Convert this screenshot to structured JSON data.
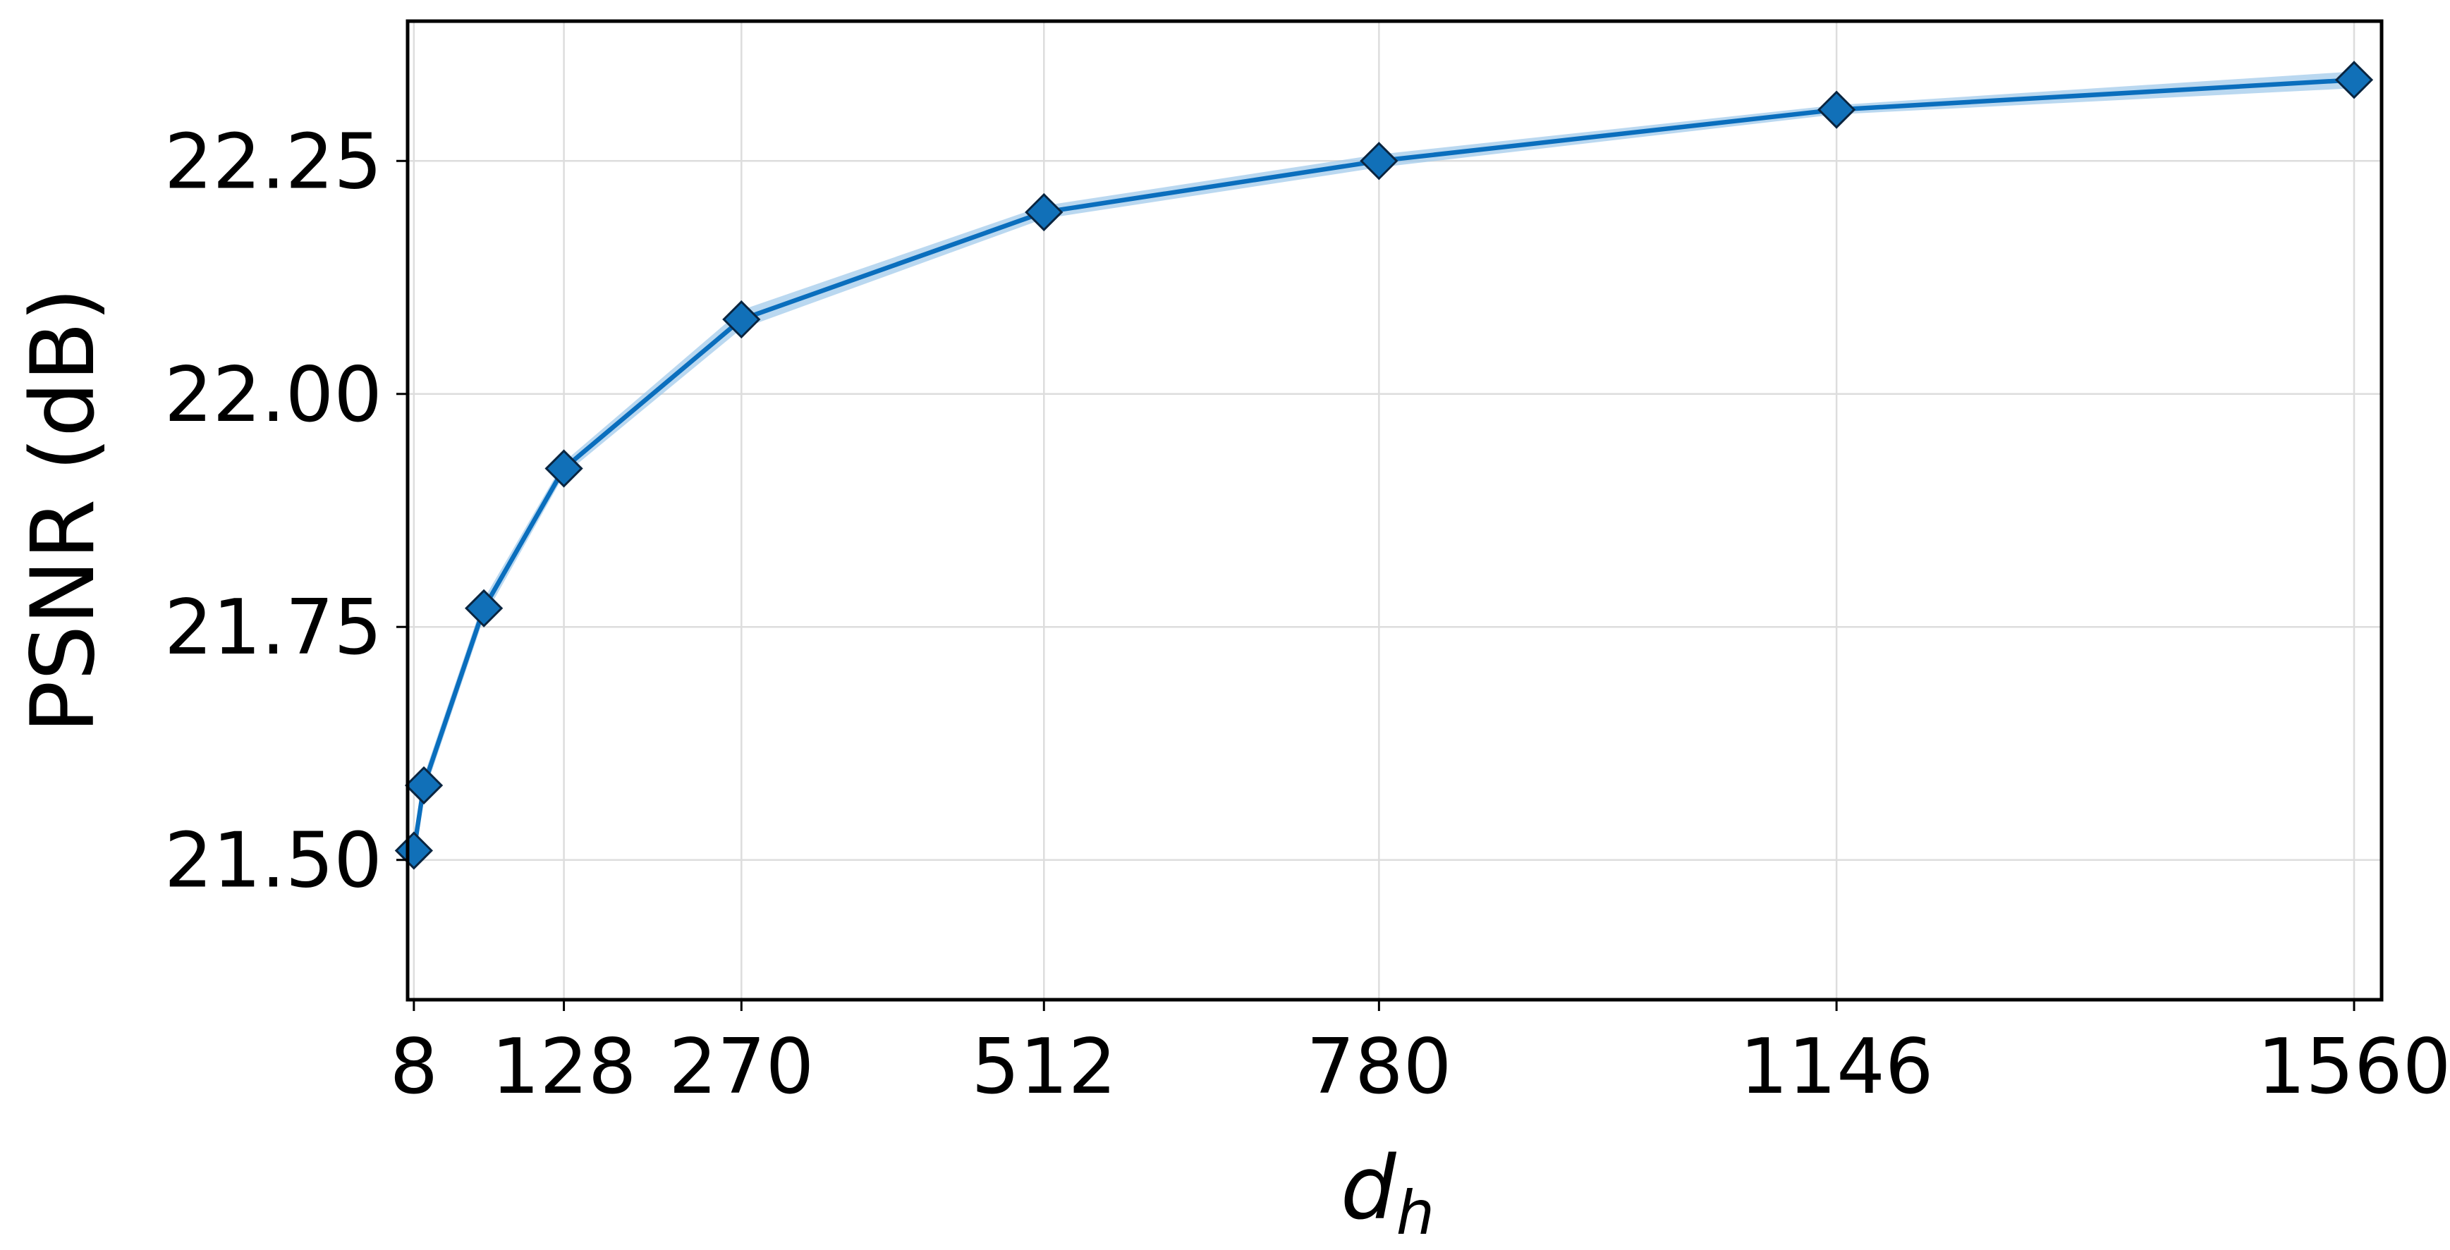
{
  "chart_data": {
    "type": "line",
    "title": "",
    "xlabel": "d",
    "xlabel_sub": "h",
    "ylabel": "PSNR (dB)",
    "xlim": [
      3,
      1582
    ],
    "ylim": [
      21.35,
      22.4
    ],
    "xticks": [
      8,
      128,
      270,
      512,
      780,
      1146,
      1560
    ],
    "yticks": [
      21.5,
      21.75,
      22.0,
      22.25
    ],
    "ytick_labels": [
      "21.50",
      "21.75",
      "22.00",
      "22.25"
    ],
    "grid": true,
    "legend": "none",
    "series": [
      {
        "x": [
          8,
          16,
          64,
          128,
          270,
          512,
          780,
          1146,
          1560
        ],
        "y": [
          21.51,
          21.58,
          21.77,
          21.92,
          22.08,
          22.195,
          22.25,
          22.305,
          22.337
        ],
        "band_low": [
          21.5,
          21.57,
          21.76,
          21.913,
          22.07,
          22.188,
          22.243,
          22.3,
          22.328
        ],
        "band_high": [
          21.52,
          21.59,
          21.78,
          21.927,
          22.09,
          22.202,
          22.257,
          22.31,
          22.346
        ],
        "marker": "diamond"
      }
    ],
    "colors": {
      "line": "#0a6ebd",
      "marker_fill": "#1170b8",
      "marker_edge": "#0a2540",
      "band": "#9cc7ea"
    }
  }
}
